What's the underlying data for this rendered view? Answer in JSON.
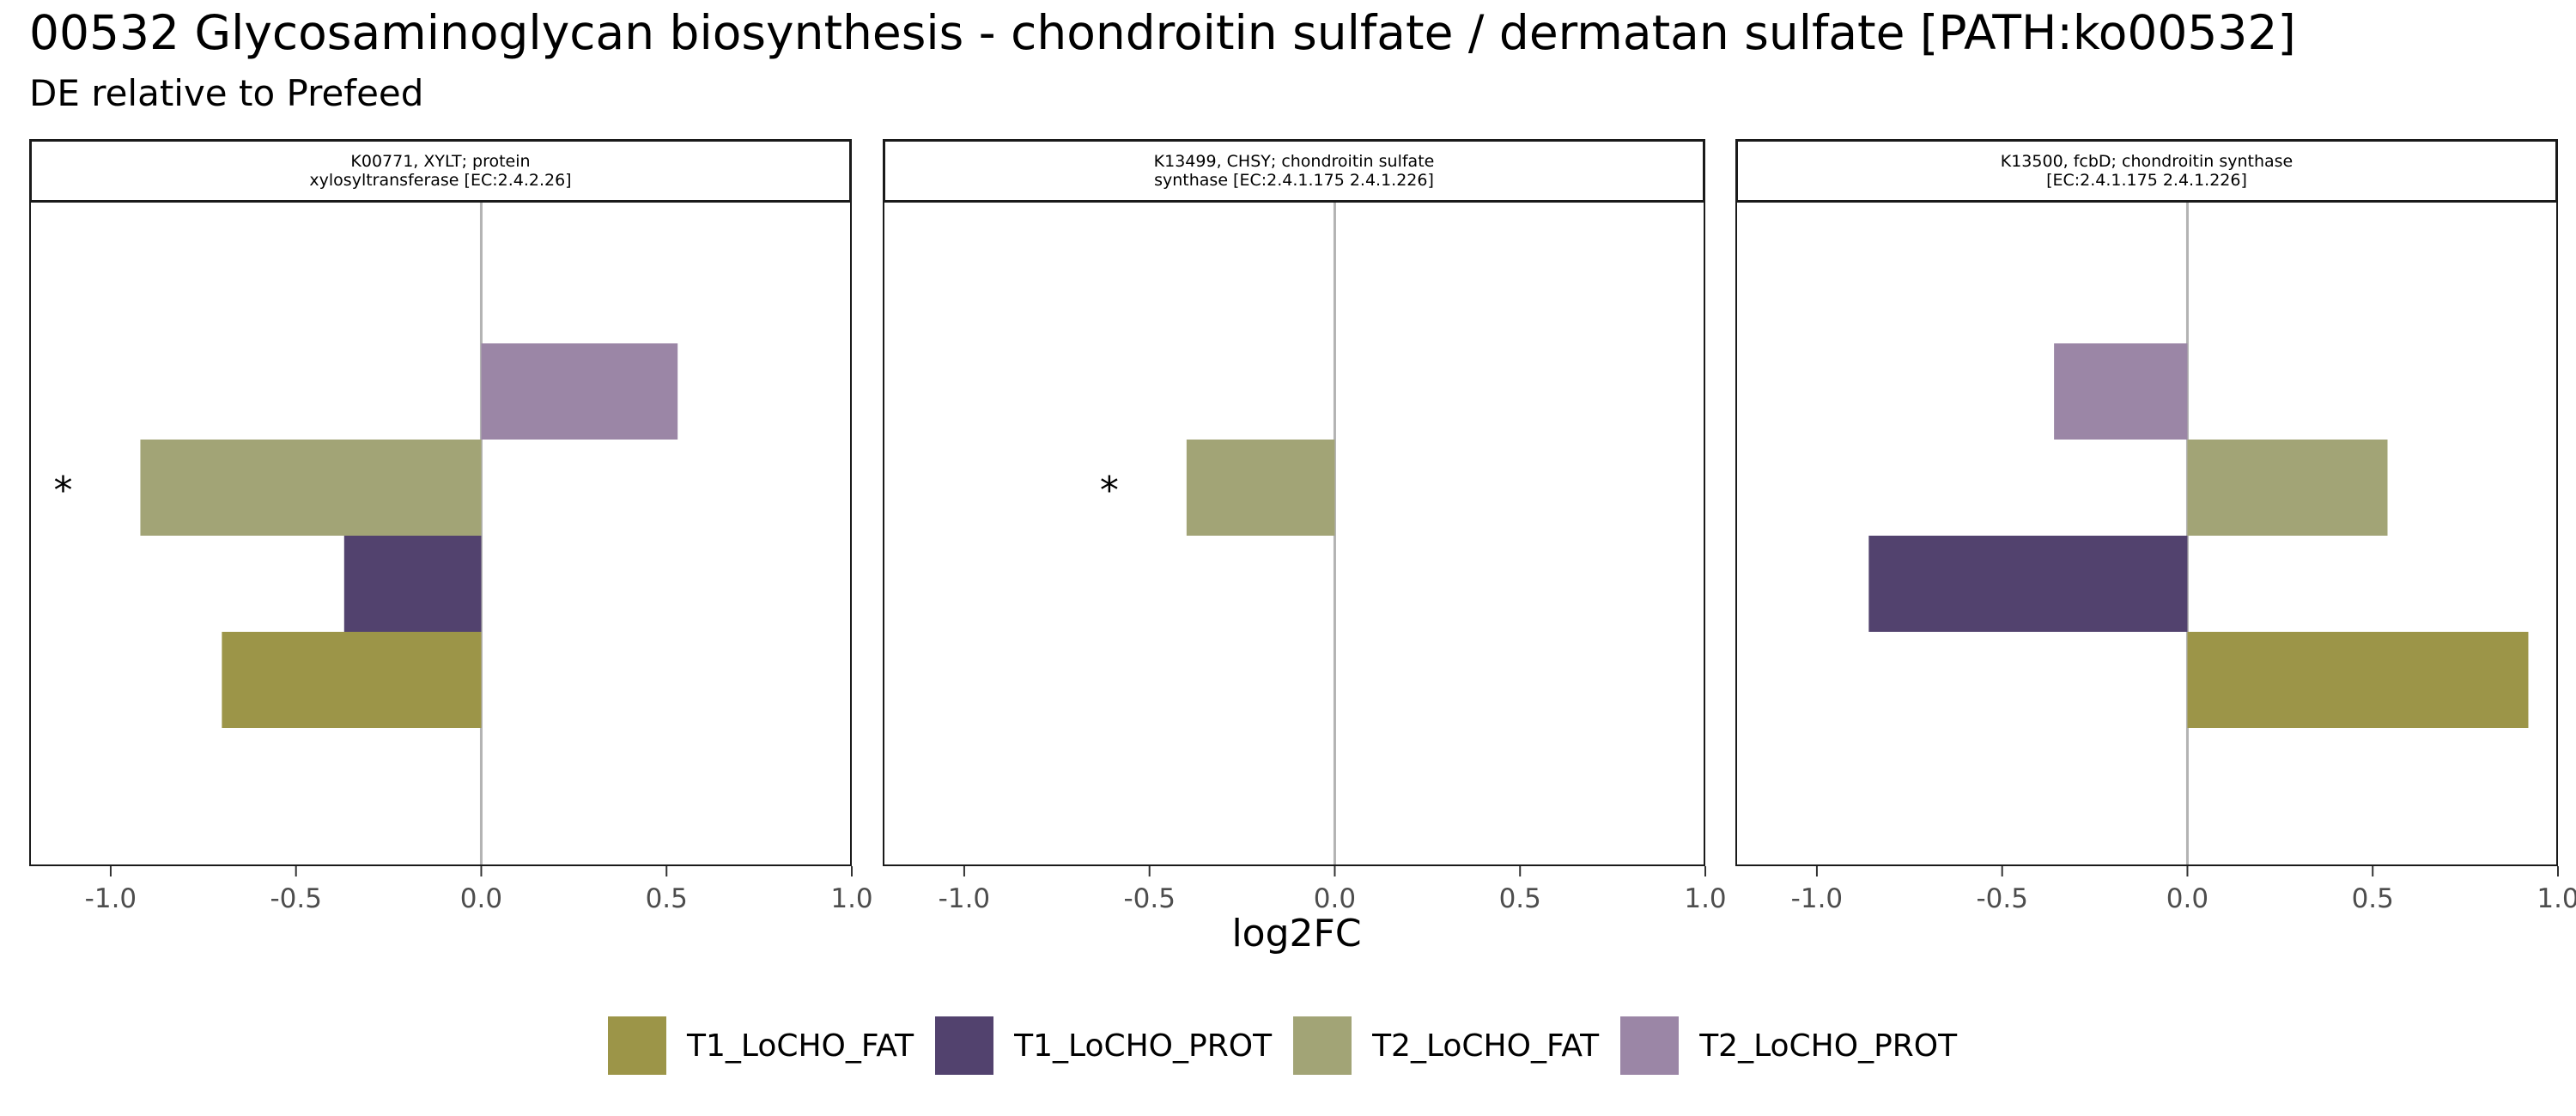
{
  "title": "00532 Glycosaminoglycan biosynthesis - chondroitin sulfate / dermatan sulfate [PATH:ko00532]",
  "subtitle": "DE relative to Prefeed",
  "xlabel": "log2FC",
  "legend": [
    {
      "label": "T1_LoCHO_FAT",
      "color": "#9c9548"
    },
    {
      "label": "T1_LoCHO_PROT",
      "color": "#52426e"
    },
    {
      "label": "T2_LoCHO_FAT",
      "color": "#a2a476"
    },
    {
      "label": "T2_LoCHO_PROT",
      "color": "#9b86a6"
    }
  ],
  "chart_data": [
    {
      "type": "bar",
      "orientation": "horizontal",
      "facet_lines": [
        "K00771, XYLT; protein",
        "xylosyltransferase [EC:2.4.2.26]"
      ],
      "xlim": [
        -1.22,
        1.0
      ],
      "xticks": [
        "-1.0",
        "-0.5",
        "0.0",
        "0.5",
        "1.0"
      ],
      "xtick_values": [
        -1.0,
        -0.5,
        0.0,
        0.5,
        1.0
      ],
      "series": [
        {
          "name": "T1_LoCHO_FAT",
          "value": -0.7,
          "significant": false
        },
        {
          "name": "T1_LoCHO_PROT",
          "value": -0.37,
          "significant": false
        },
        {
          "name": "T2_LoCHO_FAT",
          "value": -0.92,
          "significant": true
        },
        {
          "name": "T2_LoCHO_PROT",
          "value": 0.53,
          "significant": false
        }
      ],
      "annotation": "*"
    },
    {
      "type": "bar",
      "orientation": "horizontal",
      "facet_lines": [
        "K13499, CHSY; chondroitin sulfate",
        "synthase [EC:2.4.1.175 2.4.1.226]"
      ],
      "xlim": [
        -1.22,
        1.0
      ],
      "xticks": [
        "-1.0",
        "-0.5",
        "0.0",
        "0.5",
        "1.0"
      ],
      "xtick_values": [
        -1.0,
        -0.5,
        0.0,
        0.5,
        1.0
      ],
      "series": [
        {
          "name": "T2_LoCHO_FAT",
          "value": -0.4,
          "significant": true
        }
      ],
      "annotation": "*"
    },
    {
      "type": "bar",
      "orientation": "horizontal",
      "facet_lines": [
        "K13500, fcbD; chondroitin synthase",
        "[EC:2.4.1.175 2.4.1.226]"
      ],
      "xlim": [
        -1.22,
        1.0
      ],
      "xticks": [
        "-1.0",
        "-0.5",
        "0.0",
        "0.5",
        "1.0"
      ],
      "xtick_values": [
        -1.0,
        -0.5,
        0.0,
        0.5,
        1.0
      ],
      "series": [
        {
          "name": "T1_LoCHO_FAT",
          "value": 0.92,
          "significant": false
        },
        {
          "name": "T1_LoCHO_PROT",
          "value": -0.86,
          "significant": false
        },
        {
          "name": "T2_LoCHO_FAT",
          "value": 0.54,
          "significant": false
        },
        {
          "name": "T2_LoCHO_PROT",
          "value": -0.36,
          "significant": false
        }
      ],
      "annotation": ""
    }
  ]
}
